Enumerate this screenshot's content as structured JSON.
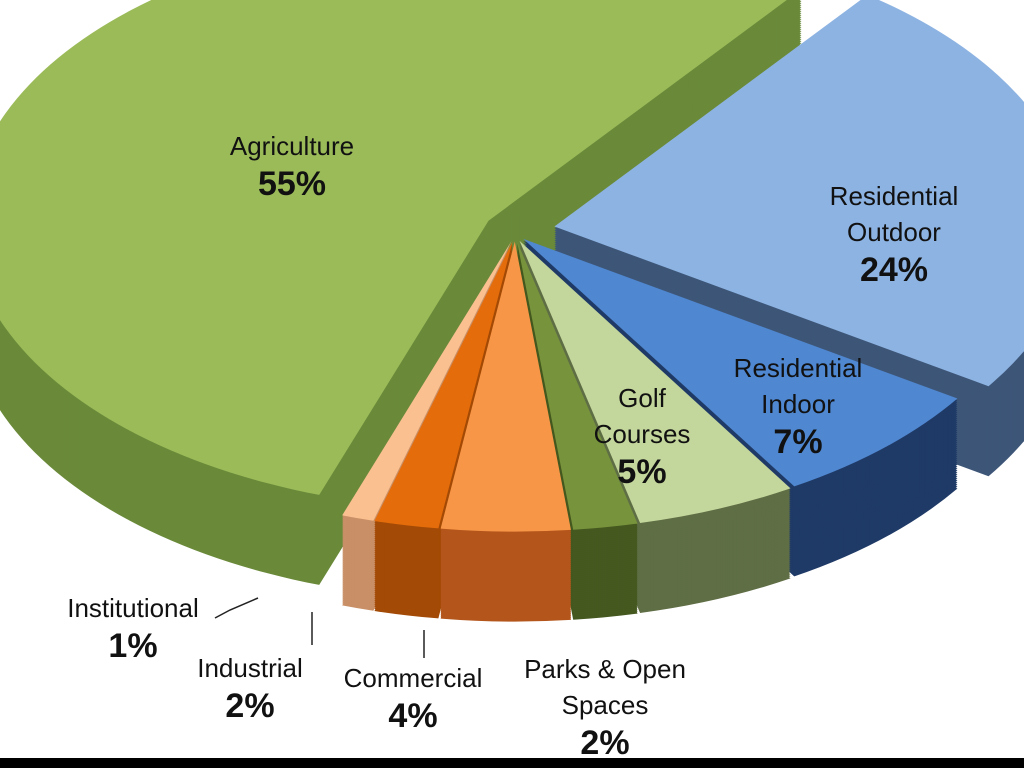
{
  "chart_data": {
    "type": "pie",
    "style": "3d-exploded",
    "title": "",
    "slices": [
      {
        "label": "Residential Outdoor",
        "line1": "Residential",
        "line2": "Outdoor",
        "pct_label": "24%",
        "value": 24,
        "color": "#8db3e2",
        "side": "#3d5678"
      },
      {
        "label": "Residential Indoor",
        "line1": "Residential",
        "line2": "Indoor",
        "pct_label": "7%",
        "value": 7,
        "color": "#4f87d0",
        "side": "#1f3a66"
      },
      {
        "label": "Golf Courses",
        "line1": "Golf",
        "line2": "Courses",
        "pct_label": "5%",
        "value": 5,
        "color": "#c3d69b",
        "side": "#5f6e45"
      },
      {
        "label": "Parks & Open Spaces",
        "line1": "Parks & Open",
        "line2": "Spaces",
        "pct_label": "2%",
        "value": 2,
        "color": "#77933c",
        "side": "#44581f"
      },
      {
        "label": "Commercial",
        "line1": "Commercial",
        "line2": "",
        "pct_label": "4%",
        "value": 4,
        "color": "#f79646",
        "side": "#b4561c"
      },
      {
        "label": "Industrial",
        "line1": "Industrial",
        "line2": "",
        "pct_label": "2%",
        "value": 2,
        "color": "#e46c0a",
        "side": "#a34a06"
      },
      {
        "label": "Institutional",
        "line1": "Institutional",
        "line2": "",
        "pct_label": "1%",
        "value": 1,
        "color": "#fac090",
        "side": "#c98f66"
      },
      {
        "label": "Agriculture",
        "line1": "Agriculture",
        "line2": "",
        "pct_label": "55%",
        "value": 55,
        "color": "#9bbb59",
        "side": "#6a8a3a"
      }
    ]
  }
}
